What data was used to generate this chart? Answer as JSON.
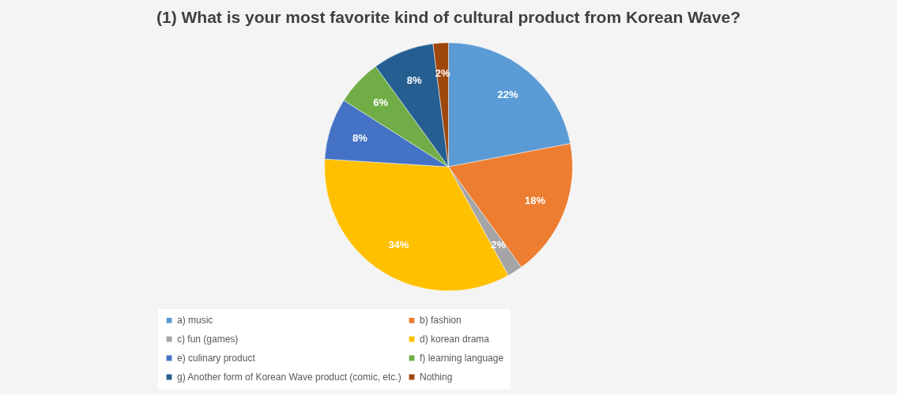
{
  "chart_data": {
    "type": "pie",
    "title": "(1) What is your most favorite kind of cultural product from Korean Wave?",
    "categories": [
      "a) music",
      "b) fashion",
      "c) fun (games)",
      "d) korean drama",
      "e) culinary product",
      "f) learning language",
      "g) Another form of Korean Wave product (comic, etc.)",
      "Nothing"
    ],
    "values": [
      22,
      18,
      2,
      34,
      8,
      6,
      8,
      2
    ],
    "colors": [
      "#5b9bd5",
      "#ed7d31",
      "#a5a5a5",
      "#ffc000",
      "#4472c4",
      "#70ad47",
      "#255e91",
      "#9e480e"
    ],
    "value_labels": [
      "22%",
      "18%",
      "2%",
      "34%",
      "8%",
      "6%",
      "8%",
      "2%"
    ],
    "legend": "bottom"
  }
}
